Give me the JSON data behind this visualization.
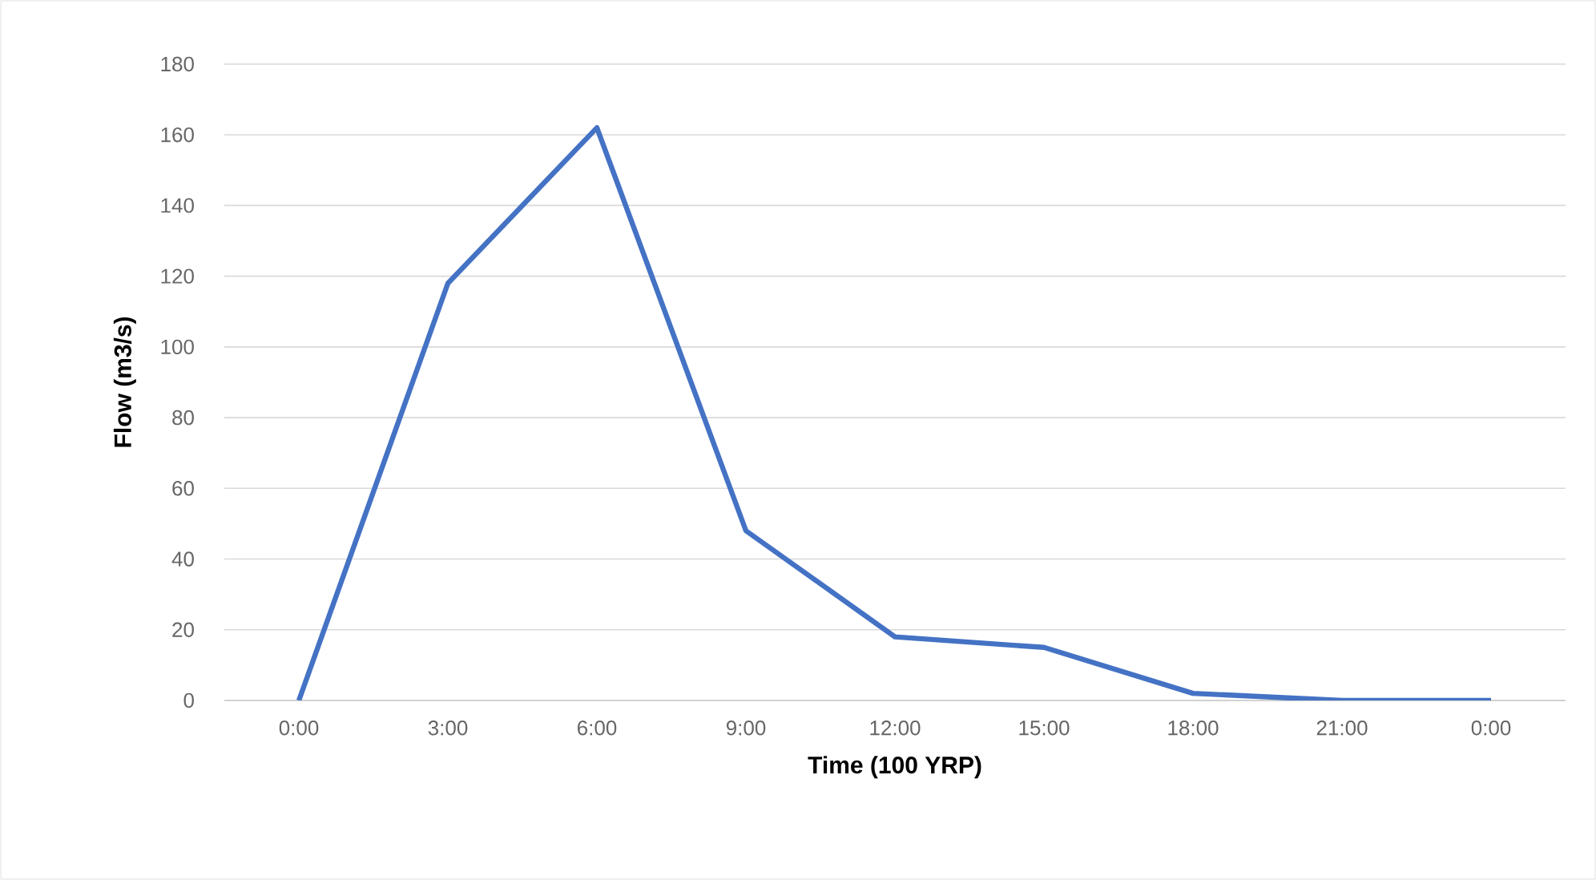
{
  "chart_data": {
    "type": "line",
    "xlabel": "Time (100 YRP)",
    "ylabel": "Flow (m3/s)",
    "categories": [
      "0:00",
      "3:00",
      "6:00",
      "9:00",
      "12:00",
      "15:00",
      "18:00",
      "21:00",
      "0:00"
    ],
    "series": [
      {
        "color": "#4472c4",
        "values": [
          0,
          118,
          162,
          48,
          18,
          15,
          2,
          0,
          0
        ]
      }
    ],
    "ylim": [
      0,
      180
    ],
    "yticks": [
      0,
      20,
      40,
      60,
      80,
      100,
      120,
      140,
      160,
      180
    ],
    "grid": "y"
  }
}
